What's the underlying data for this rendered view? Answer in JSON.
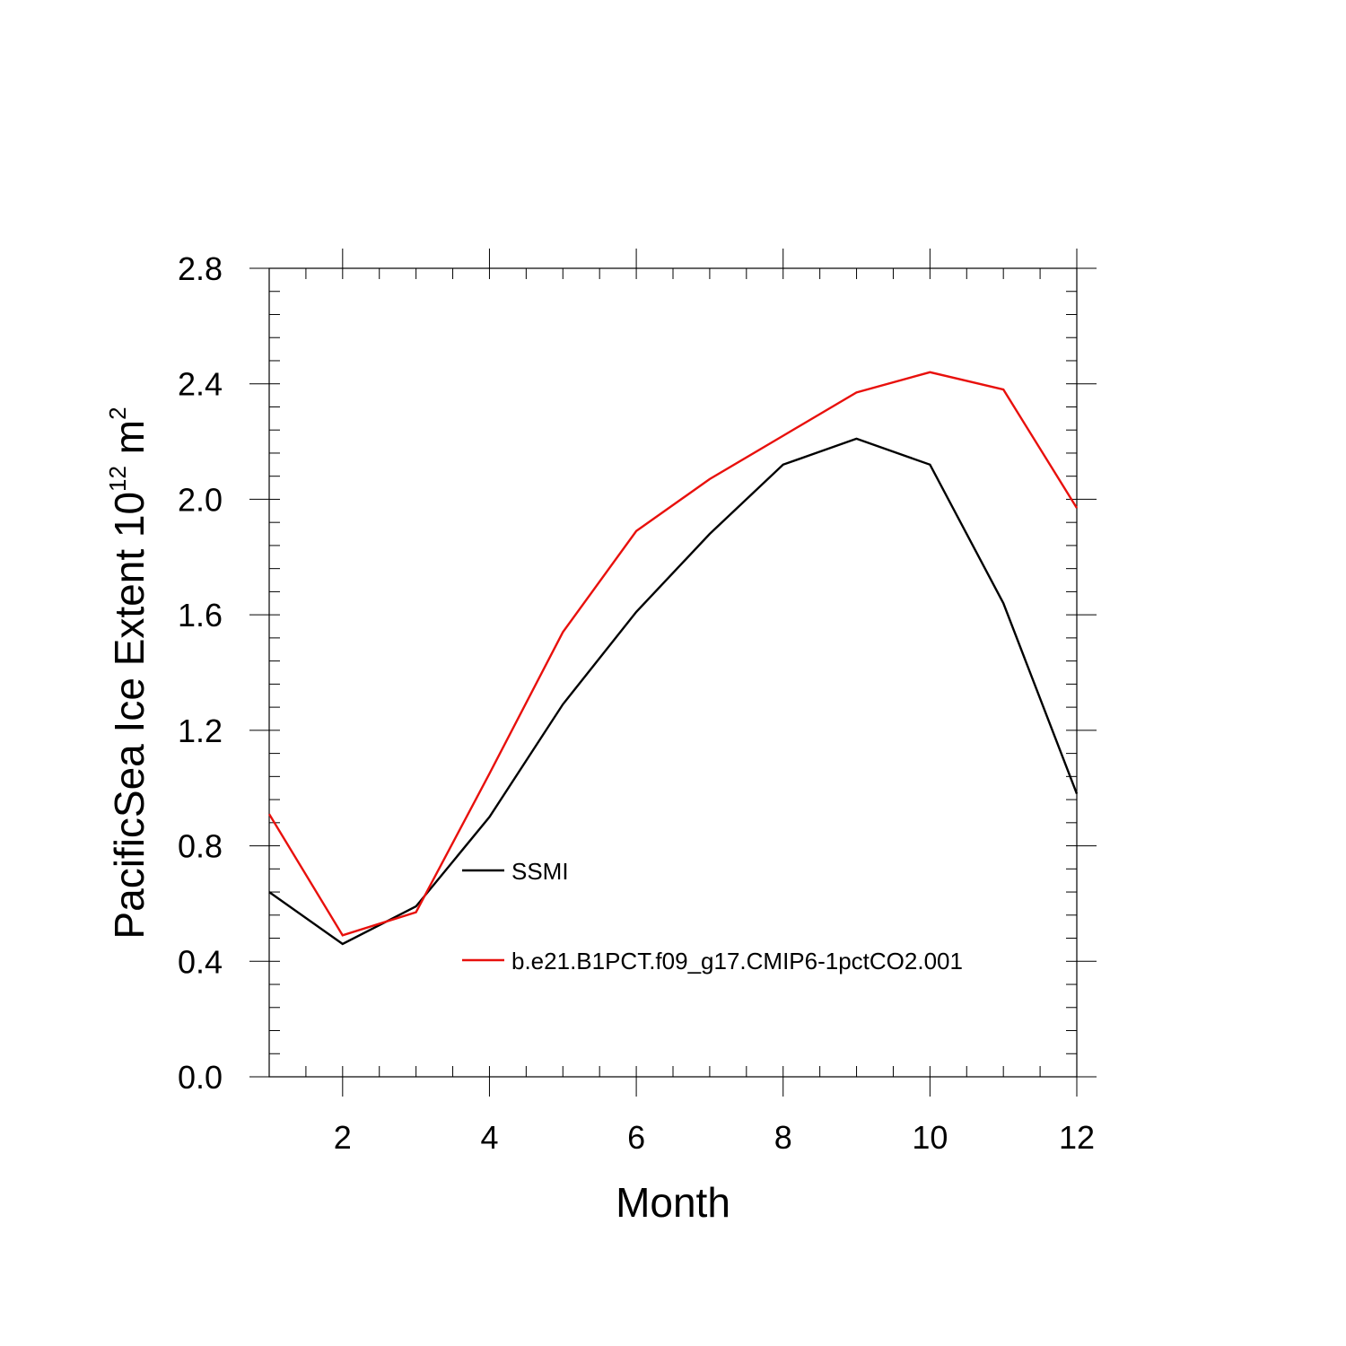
{
  "chart_data": {
    "type": "line",
    "title": "",
    "xlabel": "Month",
    "ylabel_main": "PacificSea Ice Extent 10",
    "ylabel_sup1": "12",
    "ylabel_mid": " m",
    "ylabel_sup2": "2",
    "xlim": [
      1,
      12
    ],
    "ylim": [
      0,
      2.8
    ],
    "x_ticks": [
      2,
      4,
      6,
      8,
      10,
      12
    ],
    "x_tick_labels": [
      "2",
      "4",
      "6",
      "8",
      "10",
      "12"
    ],
    "y_ticks": [
      0,
      0.4,
      0.8,
      1.2,
      1.6,
      2.0,
      2.4,
      2.8
    ],
    "y_tick_labels": [
      "0.0",
      "0.4",
      "0.8",
      "1.2",
      "1.6",
      "2.0",
      "2.4",
      "2.8"
    ],
    "grid": false,
    "legend_position": "inside lower-center",
    "x": [
      1,
      2,
      3,
      4,
      5,
      6,
      7,
      8,
      9,
      10,
      11,
      12
    ],
    "series": [
      {
        "name": "SSMI",
        "color": "#000000",
        "values": [
          0.64,
          0.46,
          0.59,
          0.9,
          1.29,
          1.61,
          1.88,
          2.12,
          2.21,
          2.12,
          1.64,
          0.98
        ]
      },
      {
        "name": "b.e21.B1PCT.f09_g17.CMIP6-1pctCO2.001",
        "color": "#e8100c",
        "values": [
          0.91,
          0.49,
          0.57,
          1.05,
          1.54,
          1.89,
          2.07,
          2.22,
          2.37,
          2.44,
          2.38,
          1.97
        ]
      }
    ]
  }
}
